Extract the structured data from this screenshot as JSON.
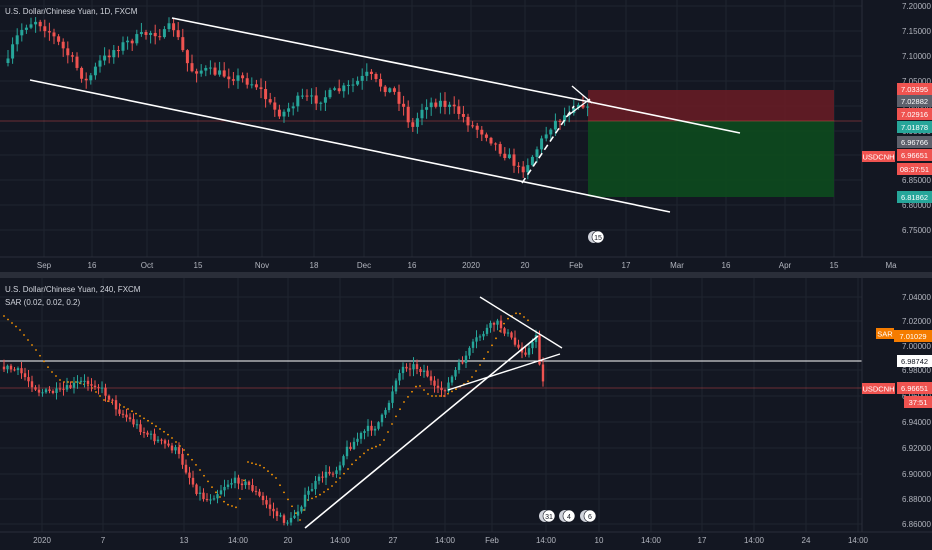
{
  "colors": {
    "background": "#131722",
    "grid": "#1f2430",
    "bull": "#26a69a",
    "bear": "#ef5350",
    "trendline": "#ffffff",
    "sar": "#ff9800",
    "stop_zone": "#6b1c24",
    "target_zone": "#0d4a1e",
    "text": "#b2b5be"
  },
  "top_panel": {
    "title": "U.S. Dollar/Chinese Yuan, 1D, FXCM",
    "price_labels": [
      "7.20000",
      "7.15000",
      "7.10000",
      "7.05000",
      "7.00000",
      "6.95000",
      "6.90000",
      "6.85000",
      "6.80000",
      "6.75000"
    ],
    "time_labels": [
      "Sep",
      "16",
      "Oct",
      "15",
      "Nov",
      "18",
      "Dec",
      "16",
      "2020",
      "20",
      "Feb",
      "17",
      "Mar",
      "16",
      "Apr",
      "15",
      "Ma"
    ],
    "event_badge": "15",
    "price_tags": [
      {
        "text": "7.03395",
        "color": "#ef5350"
      },
      {
        "text": "7.02882",
        "color": "#5d606b"
      },
      {
        "text": "7.02916",
        "color": "#ef5350"
      },
      {
        "text": "7.01878",
        "color": "#26a69a"
      },
      {
        "text": "6.96766",
        "color": "#5d606b"
      },
      {
        "text": "6.96651",
        "color": "#ef5350"
      },
      {
        "text": "08:37:51",
        "color": "#ef5350"
      },
      {
        "text": "6.81862",
        "color": "#26a69a"
      }
    ],
    "symbol_tag": "USDCNH"
  },
  "bottom_panel": {
    "title": "U.S. Dollar/Chinese Yuan, 240, FXCM",
    "indicator": "SAR (0.02, 0.02, 0.2)",
    "price_labels": [
      "7.04000",
      "7.02000",
      "7.00000",
      "6.98000",
      "6.96000",
      "6.94000",
      "6.92000",
      "6.90000",
      "6.88000",
      "6.86000"
    ],
    "time_labels": [
      "2020",
      "7",
      "13",
      "14:00",
      "20",
      "14:00",
      "27",
      "14:00",
      "Feb",
      "14:00",
      "10",
      "14:00",
      "17",
      "14:00",
      "24",
      "14:00"
    ],
    "event_badges": [
      "31",
      "4",
      "6"
    ],
    "price_tags": [
      {
        "text": "7.01029",
        "color": "#f57c00"
      },
      {
        "text": "6.98742",
        "color": "#ffffff"
      },
      {
        "text": "6.96651",
        "color": "#ef5350"
      },
      {
        "text": "37:51",
        "color": "#ef5350"
      }
    ],
    "indicator_tag": "SAR",
    "symbol_tag": "USDCNH"
  },
  "chart_data": [
    {
      "type": "candlestick",
      "title": "U.S. Dollar/Chinese Yuan, 1D, FXCM",
      "symbol": "USDCNH",
      "interval": "1D",
      "ylim": [
        6.72,
        7.22
      ],
      "close_path": [
        [
          "Aug 26",
          7.165
        ],
        [
          "Sep 3",
          7.17
        ],
        [
          "Sep 10",
          7.125
        ],
        [
          "Sep 16",
          7.08
        ],
        [
          "Sep 23",
          7.125
        ],
        [
          "Sep 30",
          7.15
        ],
        [
          "Oct 8",
          7.16
        ],
        [
          "Oct 14",
          7.06
        ],
        [
          "Oct 21",
          7.075
        ],
        [
          "Oct 28",
          7.05
        ],
        [
          "Nov 4",
          7.03
        ],
        [
          "Nov 11",
          7.0
        ],
        [
          "Nov 18",
          7.02
        ],
        [
          "Nov 25",
          7.025
        ],
        [
          "Dec 2",
          7.06
        ],
        [
          "Dec 9",
          7.03
        ],
        [
          "Dec 12",
          6.98
        ],
        [
          "Dec 20",
          7.01
        ],
        [
          "Dec 27",
          7.02
        ],
        [
          "Jan 3",
          6.975
        ],
        [
          "Jan 10",
          6.955
        ],
        [
          "Jan 17",
          6.89
        ],
        [
          "Jan 20",
          6.865
        ],
        [
          "Jan 24",
          6.93
        ],
        [
          "Jan 28",
          6.985
        ],
        [
          "Jan 31",
          7.02
        ],
        [
          "Feb 4",
          7.03
        ],
        [
          "Feb 6",
          6.9665
        ]
      ],
      "lines": [
        {
          "name": "channel_top",
          "from": [
            "Oct 10",
            7.185
          ],
          "to": [
            "Feb 6",
            7.028
          ]
        },
        {
          "name": "channel_top_ext",
          "from": [
            "Feb 6",
            7.028
          ],
          "to": [
            "Mar 28",
            6.985
          ]
        },
        {
          "name": "channel_bottom",
          "from": [
            "Aug 26",
            7.06
          ],
          "to": [
            "Mar 5",
            6.78
          ]
        }
      ],
      "zones": [
        {
          "name": "stop",
          "from": 7.0188,
          "to": 7.034,
          "start": "Feb 6"
        },
        {
          "name": "target",
          "from": 6.8186,
          "to": 7.0188,
          "start": "Feb 6"
        }
      ]
    },
    {
      "type": "candlestick",
      "title": "U.S. Dollar/Chinese Yuan, 240, FXCM",
      "symbol": "USDCNH",
      "interval": "240",
      "ylim": [
        6.855,
        7.045
      ],
      "indicators": [
        "SAR (0.02, 0.02, 0.2)"
      ],
      "close_path": [
        [
          "Dec 31",
          6.975
        ],
        [
          "Jan 3",
          6.965
        ],
        [
          "Jan 6",
          6.96
        ],
        [
          "Jan 8",
          6.95
        ],
        [
          "Jan 10",
          6.925
        ],
        [
          "Jan 13",
          6.91
        ],
        [
          "Jan 14",
          6.88
        ],
        [
          "Jan 15",
          6.875
        ],
        [
          "Jan 16",
          6.885
        ],
        [
          "Jan 17",
          6.87
        ],
        [
          "Jan 20",
          6.86
        ],
        [
          "Jan 21",
          6.89
        ],
        [
          "Jan 22",
          6.91
        ],
        [
          "Jan 24",
          6.935
        ],
        [
          "Jan 27",
          6.96
        ],
        [
          "Jan 28",
          6.985
        ],
        [
          "Jan 29",
          6.98
        ],
        [
          "Jan 30",
          6.99
        ],
        [
          "Jan 31",
          6.995
        ],
        [
          "Feb 3",
          7.02
        ],
        [
          "Feb 4",
          7.005
        ],
        [
          "Feb 5",
          7.0
        ],
        [
          "Feb 6",
          6.9665
        ]
      ],
      "levels": [
        {
          "name": "horizontal_line",
          "value": 6.98742
        },
        {
          "name": "sar_value",
          "value": 7.01029
        },
        {
          "name": "last_price",
          "value": 6.96651
        }
      ]
    }
  ]
}
